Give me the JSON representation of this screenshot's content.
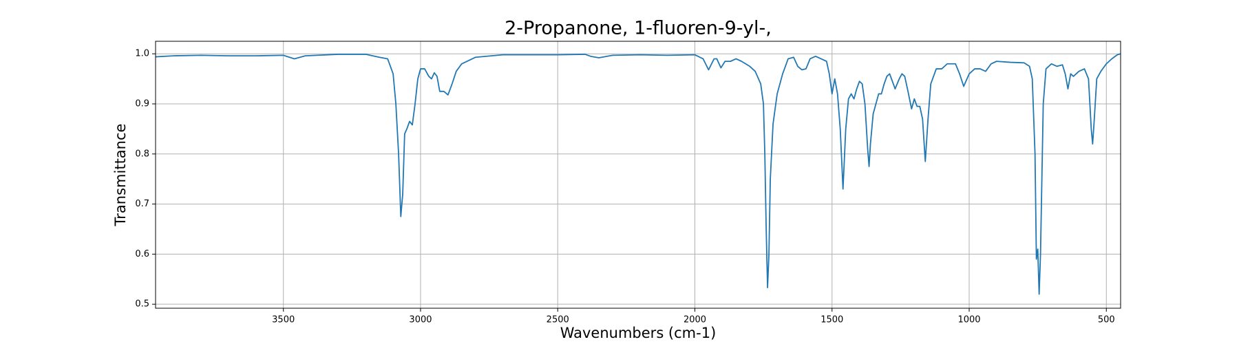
{
  "chart_data": {
    "type": "line",
    "title": "2-Propanone, 1-fluoren-9-yl-,",
    "x_label": "Wavenumbers (cm-1)",
    "y_label": "Transmittance",
    "xlim": [
      3966,
      448
    ],
    "ylim": [
      0.492,
      1.025
    ],
    "xticks": [
      3500,
      3000,
      2500,
      2000,
      1500,
      1000,
      500
    ],
    "yticks": [
      0.5,
      0.6,
      0.7,
      0.8,
      0.9,
      {
        "value": 1,
        "label": "1.0"
      }
    ],
    "grid": true,
    "x": [
      3966,
      3900,
      3800,
      3700,
      3600,
      3500,
      3460,
      3420,
      3300,
      3200,
      3150,
      3120,
      3100,
      3090,
      3080,
      3072,
      3065,
      3058,
      3050,
      3040,
      3030,
      3020,
      3010,
      3000,
      2985,
      2970,
      2960,
      2950,
      2940,
      2930,
      2915,
      2900,
      2885,
      2870,
      2850,
      2800,
      2700,
      2600,
      2500,
      2400,
      2380,
      2350,
      2300,
      2200,
      2100,
      2000,
      1970,
      1950,
      1930,
      1920,
      1905,
      1890,
      1870,
      1850,
      1830,
      1800,
      1780,
      1760,
      1750,
      1745,
      1740,
      1735,
      1730,
      1725,
      1715,
      1700,
      1680,
      1660,
      1640,
      1625,
      1610,
      1595,
      1580,
      1560,
      1540,
      1520,
      1510,
      1500,
      1490,
      1480,
      1470,
      1460,
      1450,
      1440,
      1430,
      1420,
      1410,
      1400,
      1390,
      1380,
      1370,
      1365,
      1360,
      1350,
      1330,
      1320,
      1310,
      1300,
      1290,
      1280,
      1270,
      1255,
      1245,
      1235,
      1225,
      1210,
      1200,
      1190,
      1180,
      1170,
      1160,
      1150,
      1140,
      1120,
      1100,
      1080,
      1050,
      1035,
      1020,
      1000,
      980,
      960,
      940,
      920,
      900,
      850,
      800,
      780,
      770,
      760,
      755,
      750,
      745,
      740,
      730,
      720,
      700,
      680,
      660,
      650,
      640,
      630,
      620,
      600,
      580,
      565,
      555,
      550,
      545,
      535,
      520,
      500,
      480,
      460,
      448
    ],
    "series": [
      {
        "color": "#1f77b4",
        "values": [
          0.994,
          0.996,
          0.997,
          0.996,
          0.996,
          0.997,
          0.99,
          0.996,
          0.999,
          0.999,
          0.993,
          0.99,
          0.96,
          0.9,
          0.8,
          0.675,
          0.72,
          0.84,
          0.85,
          0.865,
          0.858,
          0.9,
          0.95,
          0.97,
          0.97,
          0.955,
          0.95,
          0.962,
          0.955,
          0.925,
          0.925,
          0.918,
          0.94,
          0.965,
          0.98,
          0.993,
          0.998,
          0.998,
          0.998,
          0.999,
          0.995,
          0.992,
          0.997,
          0.998,
          0.997,
          0.998,
          0.99,
          0.968,
          0.99,
          0.99,
          0.972,
          0.985,
          0.985,
          0.99,
          0.985,
          0.975,
          0.965,
          0.94,
          0.9,
          0.8,
          0.65,
          0.533,
          0.6,
          0.75,
          0.86,
          0.92,
          0.96,
          0.99,
          0.993,
          0.975,
          0.968,
          0.97,
          0.99,
          0.995,
          0.99,
          0.985,
          0.96,
          0.92,
          0.95,
          0.92,
          0.85,
          0.73,
          0.85,
          0.91,
          0.92,
          0.91,
          0.93,
          0.945,
          0.94,
          0.9,
          0.81,
          0.775,
          0.82,
          0.88,
          0.92,
          0.92,
          0.94,
          0.955,
          0.96,
          0.945,
          0.93,
          0.95,
          0.96,
          0.955,
          0.93,
          0.89,
          0.91,
          0.895,
          0.895,
          0.87,
          0.785,
          0.87,
          0.94,
          0.97,
          0.97,
          0.98,
          0.98,
          0.96,
          0.935,
          0.96,
          0.97,
          0.97,
          0.965,
          0.98,
          0.985,
          0.983,
          0.982,
          0.975,
          0.95,
          0.8,
          0.59,
          0.61,
          0.52,
          0.6,
          0.9,
          0.97,
          0.98,
          0.975,
          0.978,
          0.96,
          0.93,
          0.96,
          0.955,
          0.965,
          0.97,
          0.95,
          0.85,
          0.82,
          0.86,
          0.95,
          0.965,
          0.98,
          0.99,
          0.998,
          1.0
        ]
      }
    ]
  }
}
